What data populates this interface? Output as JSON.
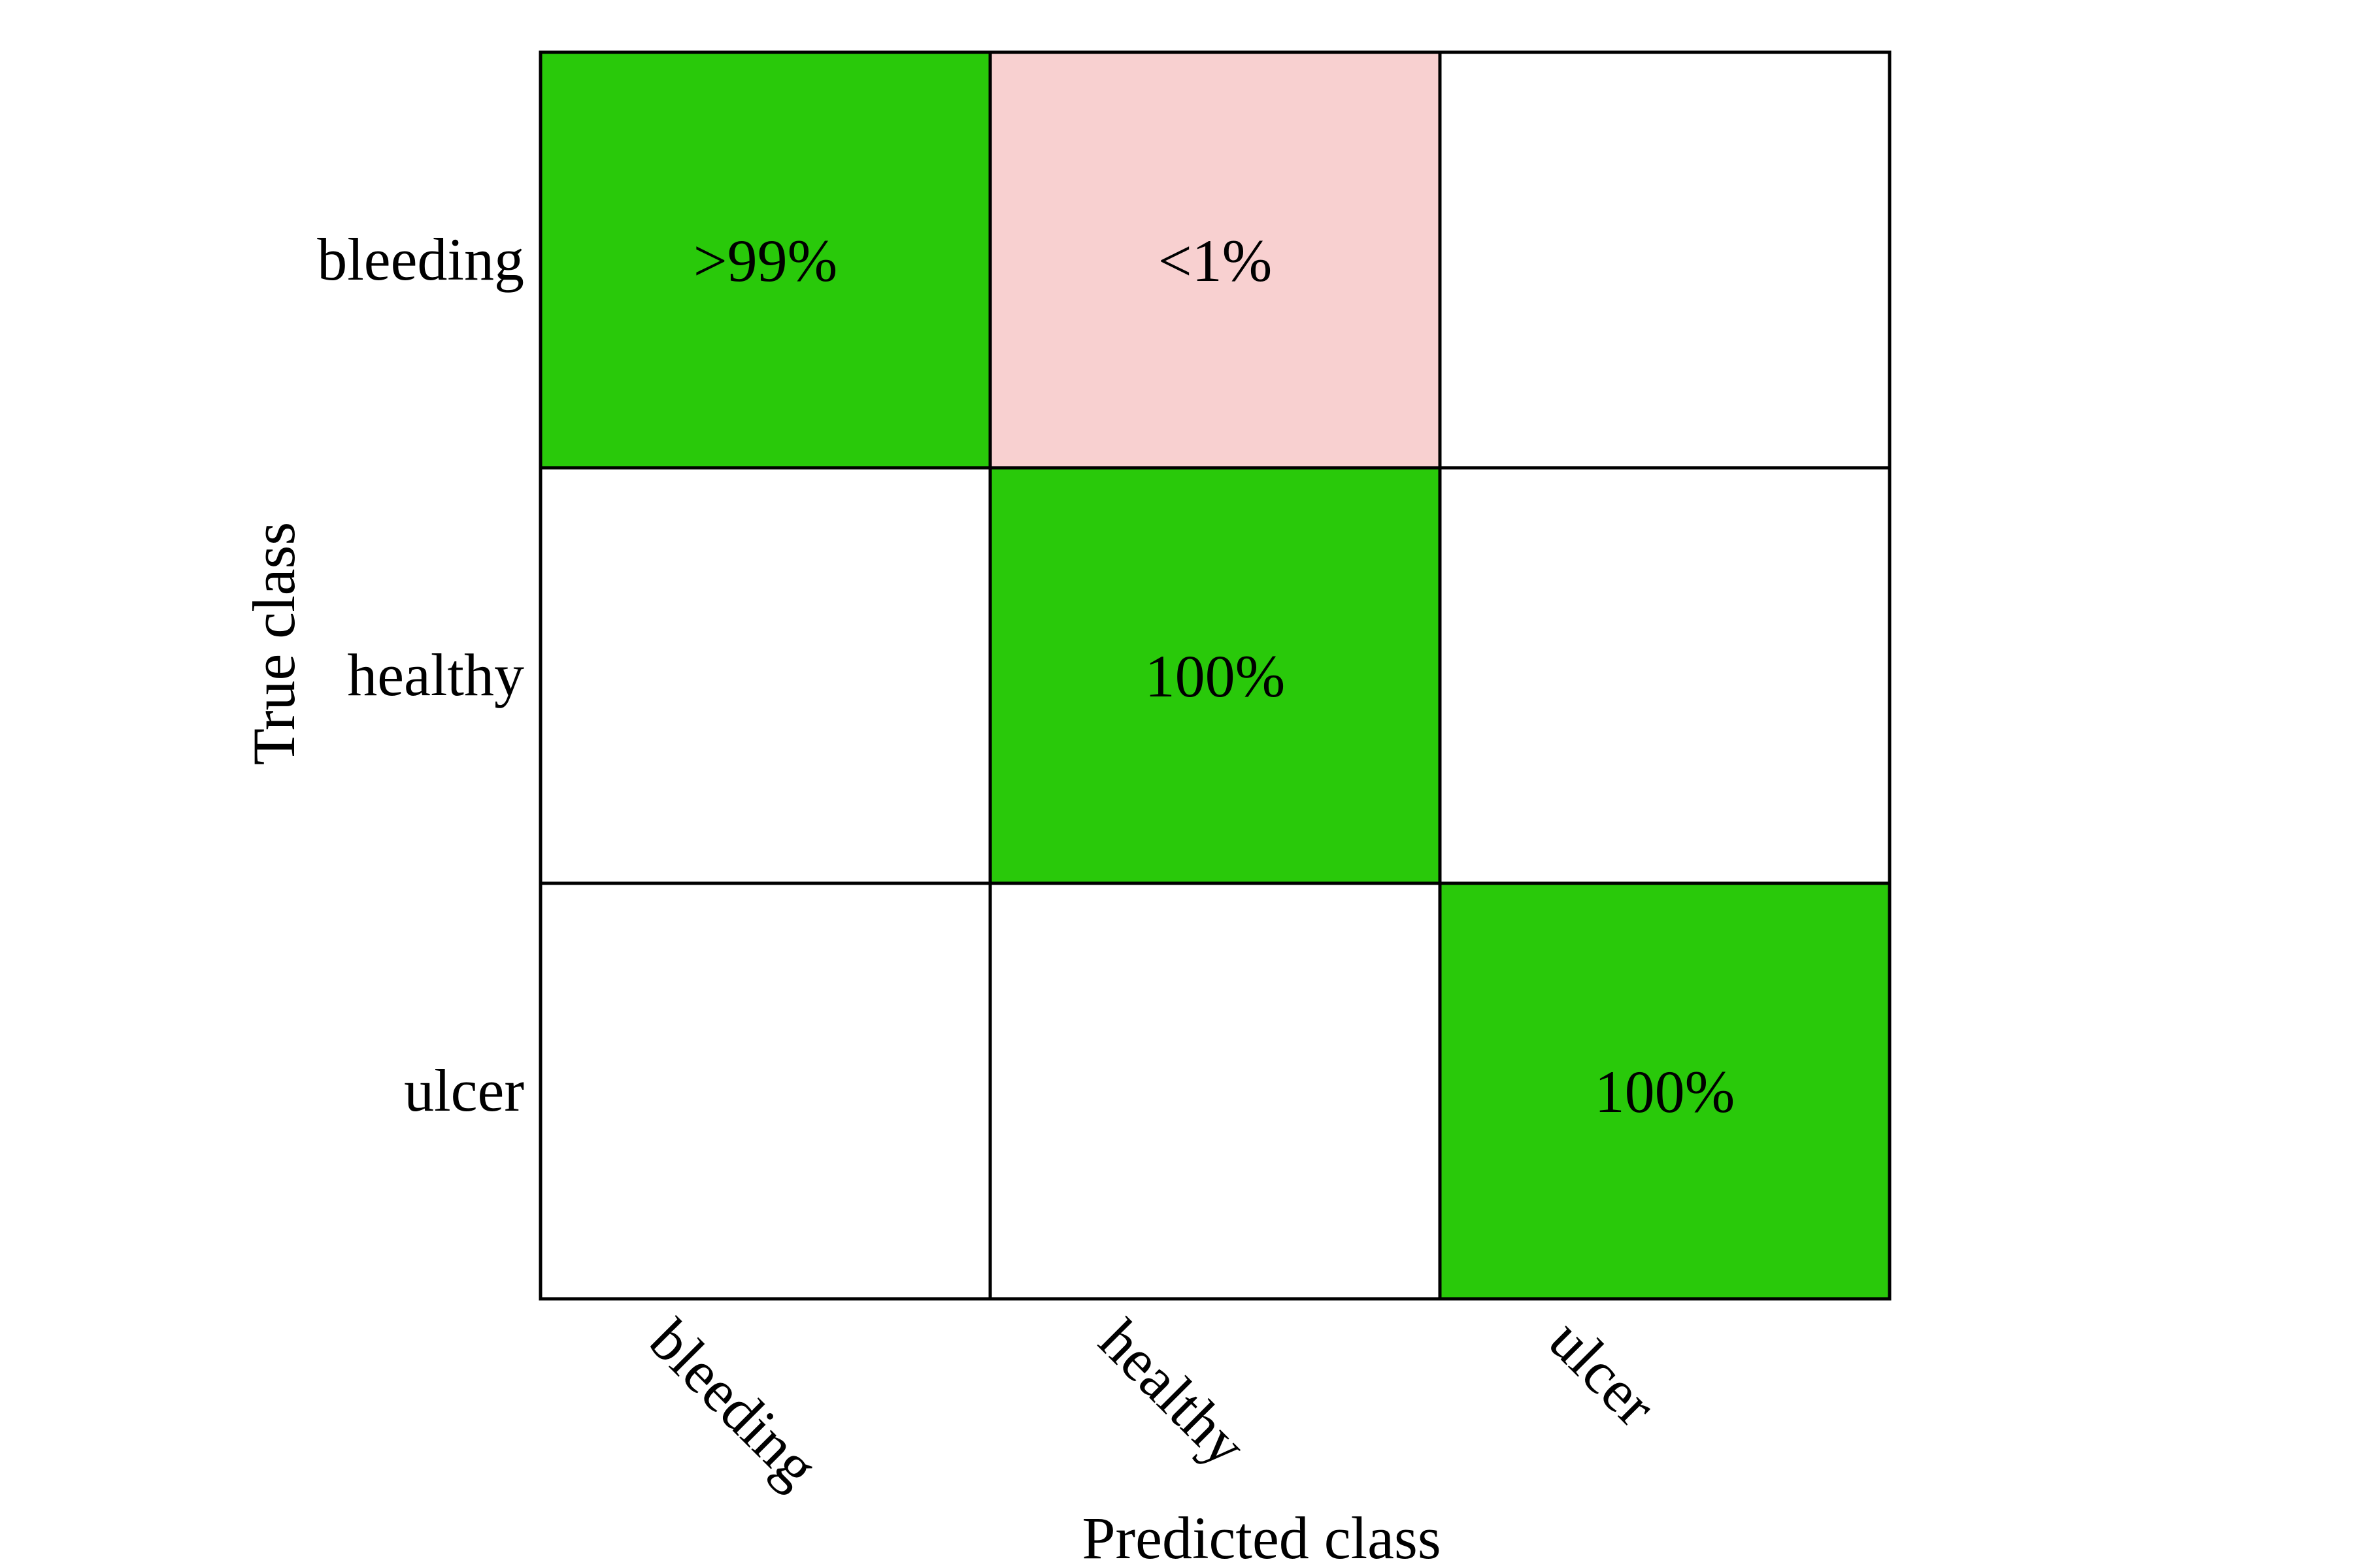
{
  "chart_data": {
    "type": "heatmap",
    "title": "",
    "xlabel": "Predicted class",
    "ylabel": "True class",
    "x_categories": [
      "bleeding",
      "healthy",
      "ulcer"
    ],
    "y_categories": [
      "bleeding",
      "healthy",
      "ulcer"
    ],
    "cells": [
      [
        ">99%",
        "<1%",
        ""
      ],
      [
        "",
        "100%",
        ""
      ],
      [
        "",
        "",
        "100%"
      ]
    ],
    "values": [
      [
        99.5,
        0.5,
        0
      ],
      [
        0,
        100,
        0
      ],
      [
        0,
        0,
        100
      ]
    ],
    "colors": {
      "diagonal": "#29c90a",
      "off_diagonal_nonzero": "#f8d0d0",
      "empty": "#ffffff",
      "border": "#000000"
    },
    "grid": true,
    "legend": "none"
  }
}
